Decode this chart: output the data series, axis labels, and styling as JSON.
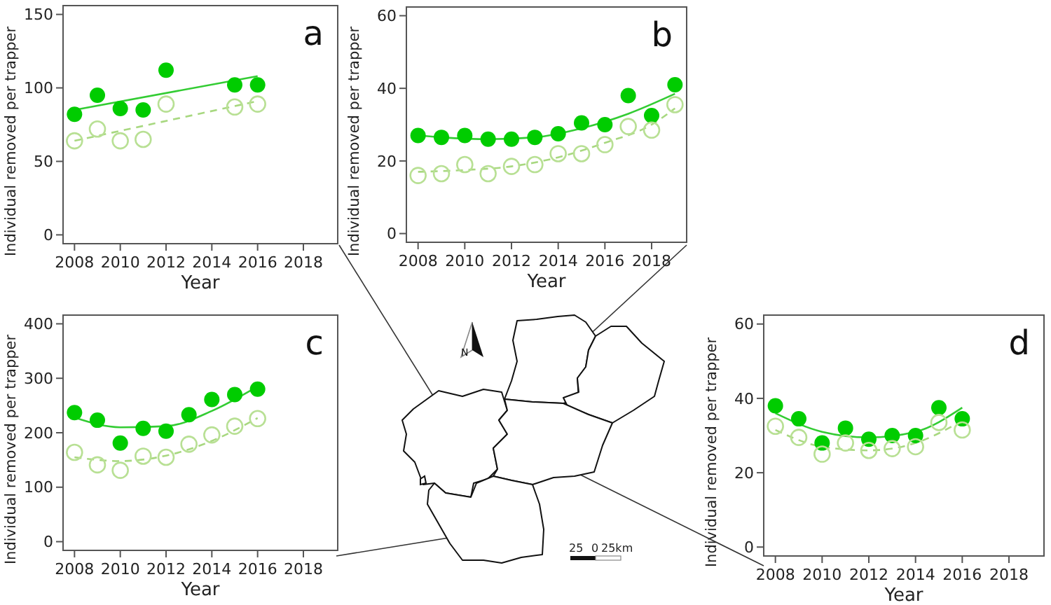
{
  "chart_data": [
    {
      "type": "scatter",
      "title": "a",
      "xlabel": "Year",
      "ylabel": "Individual removed per trapper",
      "xlim": [
        2007.5,
        2019.5
      ],
      "xticks": [
        2008,
        2010,
        2012,
        2014,
        2016,
        2018
      ],
      "ylim": [
        -6,
        156
      ],
      "yticks": [
        0,
        50,
        100,
        150
      ],
      "grid": false,
      "marker": "circle",
      "series": [
        {
          "type": "scatter",
          "color": "#00cc00",
          "x": [
            2008,
            2009,
            2010,
            2011,
            2012,
            2015,
            2016
          ],
          "values": [
            82,
            95,
            86,
            85,
            112,
            102,
            102
          ]
        },
        {
          "type": "scatter",
          "color": "#b8e094",
          "x": [
            2008,
            2009,
            2010,
            2011,
            2012,
            2015,
            2016
          ],
          "values": [
            64,
            72,
            64,
            65,
            89,
            87,
            89
          ]
        },
        {
          "type": "line",
          "color": "#33cc33",
          "marker": "none",
          "line_style": "solid",
          "x": [
            2008,
            2016
          ],
          "values": [
            85,
            108
          ]
        },
        {
          "type": "line",
          "color": "#a8d880",
          "marker": "none",
          "line_style": "dashed",
          "x": [
            2008,
            2016
          ],
          "values": [
            64,
            91
          ]
        }
      ]
    },
    {
      "type": "scatter",
      "title": "b",
      "xlabel": "Year",
      "ylabel": "Individual removed per trapper",
      "xlim": [
        2007.5,
        2019.5
      ],
      "xticks": [
        2008,
        2010,
        2012,
        2014,
        2016,
        2018
      ],
      "ylim": [
        -2.4,
        62.4
      ],
      "yticks": [
        0,
        20,
        40,
        60
      ],
      "grid": false,
      "marker": "circle",
      "series": [
        {
          "type": "scatter",
          "color": "#00cc00",
          "x": [
            2008,
            2009,
            2010,
            2011,
            2012,
            2013,
            2014,
            2015,
            2016,
            2017,
            2018,
            2019
          ],
          "values": [
            27,
            26.5,
            27,
            26,
            26,
            26.5,
            27.5,
            30.5,
            30,
            38,
            32.5,
            41
          ]
        },
        {
          "type": "scatter",
          "color": "#b8e094",
          "x": [
            2008,
            2009,
            2010,
            2011,
            2012,
            2013,
            2014,
            2015,
            2016,
            2017,
            2018,
            2019
          ],
          "values": [
            16,
            16.5,
            19,
            16.5,
            18.5,
            19,
            22,
            22,
            24.5,
            29.5,
            28.5,
            35.5
          ]
        },
        {
          "type": "line",
          "color": "#33cc33",
          "marker": "none",
          "line_style": "solid",
          "x": [
            2008,
            2009,
            2011,
            2013,
            2015,
            2017,
            2019
          ],
          "values": [
            27,
            26.5,
            26,
            26.5,
            29,
            33,
            38.5
          ]
        },
        {
          "type": "line",
          "color": "#a8d880",
          "marker": "none",
          "line_style": "dashed",
          "x": [
            2008,
            2010,
            2012,
            2014,
            2016,
            2018,
            2019
          ],
          "values": [
            17,
            17.5,
            18.5,
            21,
            25,
            30,
            34.5
          ]
        }
      ]
    },
    {
      "type": "scatter",
      "title": "c",
      "xlabel": "Year",
      "ylabel": "Individual removed per trapper",
      "xlim": [
        2007.5,
        2019.5
      ],
      "xticks": [
        2008,
        2010,
        2012,
        2014,
        2016,
        2018
      ],
      "ylim": [
        -16,
        416
      ],
      "yticks": [
        0,
        100,
        200,
        300,
        400
      ],
      "grid": false,
      "marker": "circle",
      "series": [
        {
          "type": "scatter",
          "color": "#00cc00",
          "x": [
            2008,
            2009,
            2010,
            2011,
            2012,
            2013,
            2014,
            2015,
            2016
          ],
          "values": [
            237,
            223,
            181,
            208,
            203,
            233,
            261,
            270,
            280
          ]
        },
        {
          "type": "scatter",
          "color": "#b8e094",
          "x": [
            2008,
            2009,
            2010,
            2011,
            2012,
            2013,
            2014,
            2015,
            2016
          ],
          "values": [
            164,
            141,
            131,
            157,
            155,
            179,
            196,
            212,
            226
          ]
        },
        {
          "type": "line",
          "color": "#33cc33",
          "marker": "none",
          "line_style": "solid",
          "x": [
            2008,
            2010,
            2012,
            2014,
            2016
          ],
          "values": [
            228,
            210,
            212,
            240,
            285
          ]
        },
        {
          "type": "line",
          "color": "#a8d880",
          "marker": "none",
          "line_style": "dashed",
          "x": [
            2008,
            2010,
            2012,
            2014,
            2016
          ],
          "values": [
            155,
            148,
            158,
            185,
            227
          ]
        }
      ]
    },
    {
      "type": "scatter",
      "title": "d",
      "xlabel": "Year",
      "ylabel": "Individual removed per trapper",
      "xlim": [
        2007.5,
        2019.5
      ],
      "xticks": [
        2008,
        2010,
        2012,
        2014,
        2016,
        2018
      ],
      "ylim": [
        -2.4,
        62.4
      ],
      "yticks": [
        0,
        20,
        40,
        60
      ],
      "grid": false,
      "marker": "circle",
      "series": [
        {
          "type": "scatter",
          "color": "#00cc00",
          "x": [
            2008,
            2009,
            2010,
            2011,
            2012,
            2013,
            2014,
            2015,
            2016
          ],
          "values": [
            38,
            34.5,
            28,
            32,
            29,
            30,
            30,
            37.5,
            34.5
          ]
        },
        {
          "type": "scatter",
          "color": "#b8e094",
          "x": [
            2008,
            2009,
            2010,
            2011,
            2012,
            2013,
            2014,
            2015,
            2016
          ],
          "values": [
            32.5,
            29.5,
            25,
            28,
            26,
            26.5,
            27,
            33.5,
            31.5
          ]
        },
        {
          "type": "line",
          "color": "#33cc33",
          "marker": "none",
          "line_style": "solid",
          "x": [
            2008,
            2010,
            2012,
            2014,
            2016
          ],
          "values": [
            36,
            31,
            29.5,
            31,
            37.5
          ]
        },
        {
          "type": "line",
          "color": "#a8d880",
          "marker": "none",
          "line_style": "dashed",
          "x": [
            2008,
            2010,
            2012,
            2014,
            2016
          ],
          "values": [
            31.5,
            27,
            26,
            28,
            34
          ]
        }
      ]
    },
    {
      "type": "other",
      "annotations": [
        "N",
        "25",
        "0",
        "25km"
      ]
    }
  ]
}
